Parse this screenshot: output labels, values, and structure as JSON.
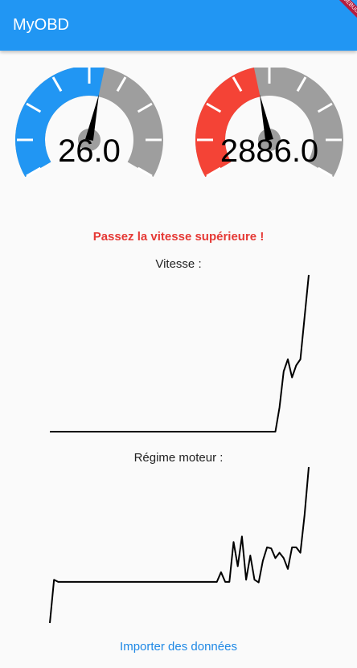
{
  "app": {
    "title": "MyOBD",
    "debug_banner": "DEBUG"
  },
  "colors": {
    "appbar": "#2196f3",
    "speed_gauge_fill": "#2196f3",
    "rpm_gauge_fill": "#f44336",
    "gauge_track": "#9e9e9e",
    "warning": "#e53935",
    "link": "#1e88e5"
  },
  "gauges": {
    "speed": {
      "value_text": "26.0",
      "value": 26.0,
      "fill_fraction": 0.55
    },
    "rpm": {
      "value_text": "2886.0",
      "value": 2886.0,
      "fill_fraction": 0.45
    }
  },
  "warning": "Passez la vitesse supérieure !",
  "charts": {
    "speed_title": "Vitesse :",
    "rpm_title": "Régime moteur :"
  },
  "chart_data": [
    {
      "type": "line",
      "title": "Vitesse :",
      "x": [
        0,
        1,
        2,
        3,
        4,
        5,
        6,
        7,
        8,
        9,
        10,
        11,
        12,
        13,
        14,
        15,
        16,
        17,
        18,
        19,
        20,
        21,
        22,
        23,
        24,
        25,
        26,
        27,
        28,
        29,
        30,
        31,
        32,
        33,
        34,
        35,
        36,
        37,
        38,
        39,
        40,
        41,
        42,
        43,
        44,
        45,
        46,
        47,
        48,
        49,
        50,
        51,
        52,
        53,
        54,
        55,
        56,
        57,
        58,
        59,
        60,
        61,
        62
      ],
      "y": [
        0,
        0,
        0,
        0,
        0,
        0,
        0,
        0,
        0,
        0,
        0,
        0,
        0,
        0,
        0,
        0,
        0,
        0,
        0,
        0,
        0,
        0,
        0,
        0,
        0,
        0,
        0,
        0,
        0,
        0,
        0,
        0,
        0,
        0,
        0,
        0,
        0,
        0,
        0,
        0,
        0,
        0,
        0,
        0,
        0,
        0,
        0,
        0,
        0,
        0,
        0,
        0,
        0,
        0,
        0,
        4,
        10,
        12,
        9,
        11,
        12,
        19,
        26
      ]
    },
    {
      "type": "line",
      "title": "Régime moteur :",
      "x": [
        0,
        1,
        2,
        3,
        4,
        5,
        6,
        7,
        8,
        9,
        10,
        11,
        12,
        13,
        14,
        15,
        16,
        17,
        18,
        19,
        20,
        21,
        22,
        23,
        24,
        25,
        26,
        27,
        28,
        29,
        30,
        31,
        32,
        33,
        34,
        35,
        36,
        37,
        38,
        39,
        40,
        41,
        42,
        43,
        44,
        45,
        46,
        47,
        48,
        49,
        50,
        51,
        52,
        53,
        54,
        55,
        56,
        57,
        58,
        59,
        60,
        61,
        62
      ],
      "y": [
        0,
        800,
        760,
        760,
        760,
        760,
        760,
        760,
        760,
        760,
        760,
        760,
        760,
        760,
        760,
        760,
        760,
        760,
        760,
        760,
        760,
        760,
        760,
        760,
        760,
        760,
        760,
        760,
        760,
        760,
        760,
        760,
        760,
        760,
        760,
        760,
        760,
        760,
        760,
        760,
        760,
        940,
        760,
        760,
        1500,
        1050,
        1600,
        800,
        1250,
        800,
        750,
        1150,
        1400,
        1380,
        1200,
        1300,
        1200,
        1000,
        1400,
        1400,
        1300,
        2000,
        2886
      ]
    }
  ]
}
